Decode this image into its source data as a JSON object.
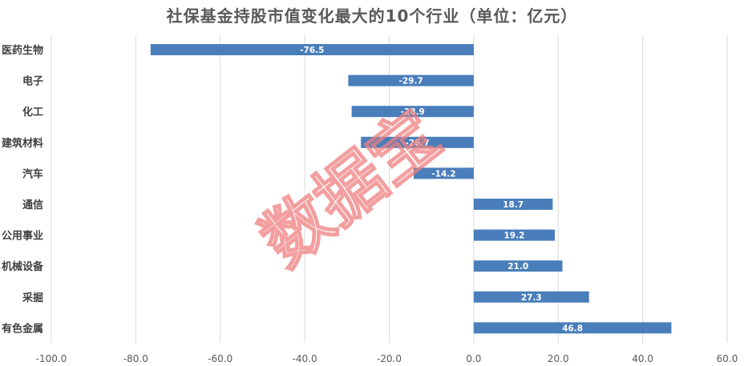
{
  "title": "社保基金持股市值变化最大的10个行业（单位：亿元）",
  "watermark": "数据宝",
  "colors": {
    "bar": "#4a7ebb",
    "watermark": "#f08080"
  },
  "chart_data": {
    "type": "bar",
    "orientation": "horizontal",
    "title": "社保基金持股市值变化最大的10个行业（单位：亿元）",
    "categories": [
      "医药生物",
      "电子",
      "化工",
      "建筑材料",
      "汽车",
      "通信",
      "公用事业",
      "机械设备",
      "采掘",
      "有色金属"
    ],
    "values": [
      -76.5,
      -29.7,
      -28.9,
      -26.7,
      -14.2,
      18.7,
      19.2,
      21.0,
      27.3,
      46.8
    ],
    "value_labels": [
      "-76.5",
      "-29.7",
      "-28.9",
      "-26.7",
      "-14.2",
      "18.7",
      "19.2",
      "21.0",
      "27.3",
      "46.8"
    ],
    "xlim": [
      -100,
      60
    ],
    "xticks": [
      -100,
      -80,
      -60,
      -40,
      -20,
      0,
      20,
      40,
      60
    ],
    "xtick_labels": [
      "-100.0",
      "-80.0",
      "-60.0",
      "-40.0",
      "-20.0",
      "0.0",
      "20.0",
      "40.0",
      "60.0"
    ],
    "grid": true,
    "legend": "none"
  }
}
